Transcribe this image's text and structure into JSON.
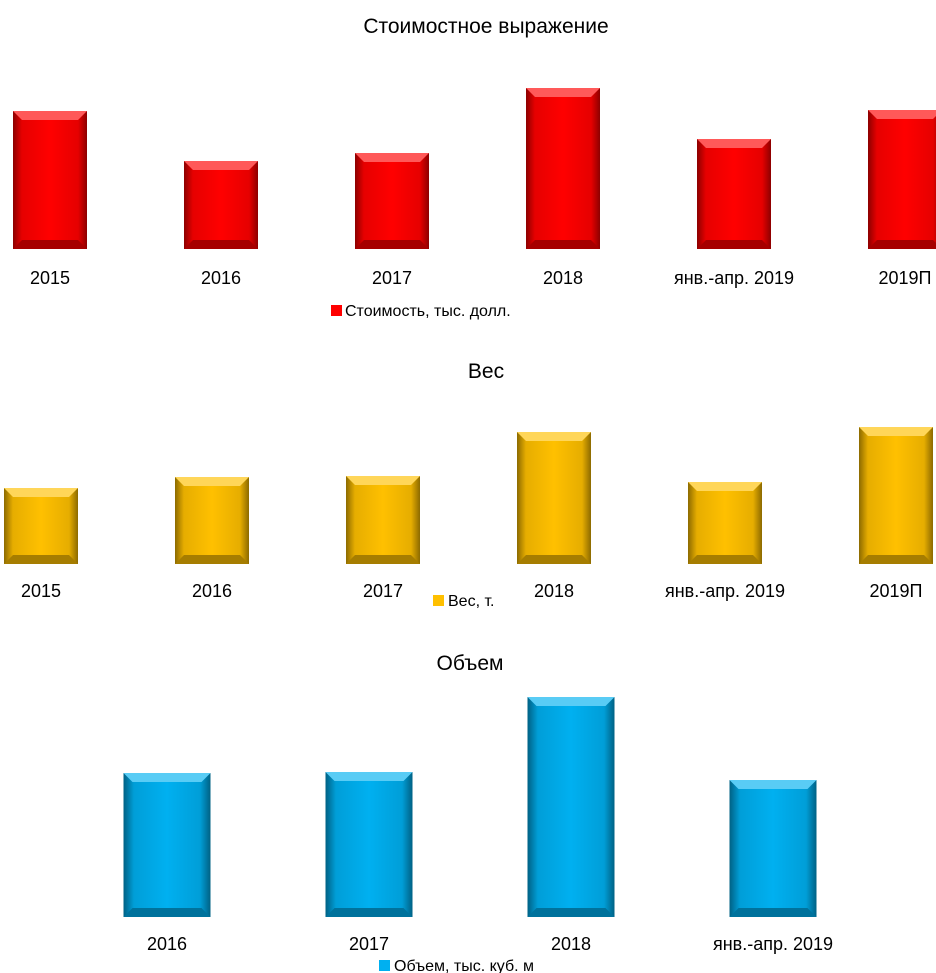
{
  "chart_data": [
    {
      "type": "bar",
      "title": "Стоимостное выражение",
      "categories": [
        "2015",
        "2016",
        "2017",
        "2018",
        "янв.-апр. 2019",
        "2019П"
      ],
      "series": [
        {
          "name": "Стоимость, тыс. долл.",
          "values": [
            138,
            88,
            96,
            161,
            110,
            139
          ],
          "color": "#ff0000"
        }
      ],
      "ylim": [
        0,
        165
      ],
      "grid": false,
      "legend": "bottom"
    },
    {
      "type": "bar",
      "title": "Вес",
      "categories": [
        "2015",
        "2016",
        "2017",
        "2018",
        "янв.-апр. 2019",
        "2019П"
      ],
      "series": [
        {
          "name": "Вес, т.",
          "values": [
            76,
            87,
            88,
            132,
            82,
            137
          ],
          "color": "#ffc000"
        }
      ],
      "ylim": [
        0,
        140
      ],
      "grid": false,
      "legend": "bottom"
    },
    {
      "type": "bar",
      "title": "Объем",
      "categories": [
        "2016",
        "2017",
        "2018",
        "янв.-апр. 2019"
      ],
      "series": [
        {
          "name": "Объем, тыс. куб. м",
          "values": [
            144,
            145,
            220,
            137
          ],
          "color": "#00b0f0"
        }
      ],
      "ylim": [
        0,
        222
      ],
      "grid": false,
      "legend": "bottom"
    }
  ]
}
